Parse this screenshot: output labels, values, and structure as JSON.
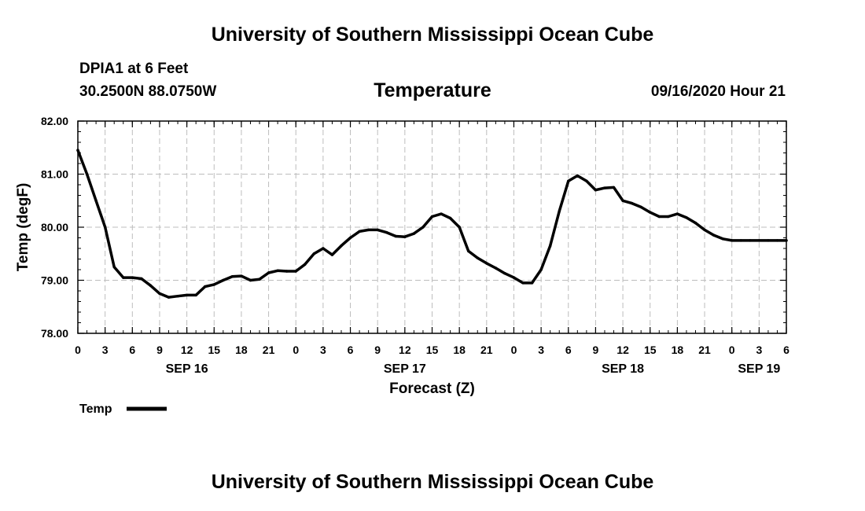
{
  "header": {
    "title": "University of Southern Mississippi Ocean Cube",
    "station": "DPIA1 at 6 Feet",
    "coords": "30.2500N 88.0750W",
    "variable": "Temperature",
    "timestamp": "09/16/2020 Hour 21"
  },
  "footer": {
    "title": "University of Southern Mississippi Ocean Cube"
  },
  "chart_data": {
    "type": "line",
    "title": "Temperature",
    "xlabel": "Forecast (Z)",
    "ylabel": "Temp (degF)",
    "ylim": [
      78.0,
      82.0
    ],
    "xlim": [
      0,
      78
    ],
    "x_unit": "hours since SEP 16 00Z",
    "grid": true,
    "yticks": [
      "78.00",
      "79.00",
      "80.00",
      "81.00",
      "82.00"
    ],
    "xtick_labels": [
      "0",
      "3",
      "6",
      "9",
      "12",
      "15",
      "18",
      "21",
      "0",
      "3",
      "6",
      "9",
      "12",
      "15",
      "18",
      "21",
      "0",
      "3",
      "6",
      "9",
      "12",
      "15",
      "18",
      "21",
      "0",
      "3",
      "6"
    ],
    "date_labels": [
      {
        "hour": 12,
        "label": "SEP 16"
      },
      {
        "hour": 36,
        "label": "SEP 17"
      },
      {
        "hour": 60,
        "label": "SEP 18"
      },
      {
        "hour": 75,
        "label": "SEP 19"
      }
    ],
    "legend": {
      "label": "Temp",
      "position": "bottom-left"
    },
    "series": [
      {
        "name": "Temp",
        "color": "#000000",
        "x": [
          0,
          1,
          2,
          3,
          4,
          5,
          6,
          7,
          8,
          9,
          10,
          11,
          12,
          13,
          14,
          15,
          16,
          17,
          18,
          19,
          20,
          21,
          22,
          23,
          24,
          25,
          26,
          27,
          28,
          29,
          30,
          31,
          32,
          33,
          34,
          35,
          36,
          37,
          38,
          39,
          40,
          41,
          42,
          43,
          44,
          45,
          46,
          47,
          48,
          49,
          50,
          51,
          52,
          53,
          54,
          55,
          56,
          57,
          58,
          59,
          60,
          61,
          62,
          63,
          64,
          65,
          66,
          67,
          68,
          69,
          70,
          71,
          72,
          73,
          74,
          75,
          76,
          77,
          78
        ],
        "values": [
          81.45,
          81.0,
          80.5,
          80.0,
          79.25,
          79.05,
          79.05,
          79.03,
          78.9,
          78.75,
          78.68,
          78.7,
          78.72,
          78.72,
          78.88,
          78.92,
          79.0,
          79.07,
          79.08,
          79.0,
          79.02,
          79.14,
          79.18,
          79.17,
          79.17,
          79.3,
          79.5,
          79.6,
          79.48,
          79.65,
          79.8,
          79.92,
          79.95,
          79.95,
          79.9,
          79.83,
          79.82,
          79.88,
          80.0,
          80.2,
          80.25,
          80.17,
          80.0,
          79.55,
          79.42,
          79.32,
          79.23,
          79.13,
          79.05,
          78.95,
          78.95,
          79.2,
          79.65,
          80.3,
          80.87,
          80.97,
          80.87,
          80.7,
          80.74,
          80.75,
          80.5,
          80.45,
          80.38,
          80.28,
          80.2,
          80.2,
          80.25,
          80.18,
          80.08,
          79.95,
          79.85,
          79.78,
          79.75,
          79.75,
          79.75,
          79.75,
          79.75,
          79.75,
          79.75
        ]
      }
    ]
  }
}
